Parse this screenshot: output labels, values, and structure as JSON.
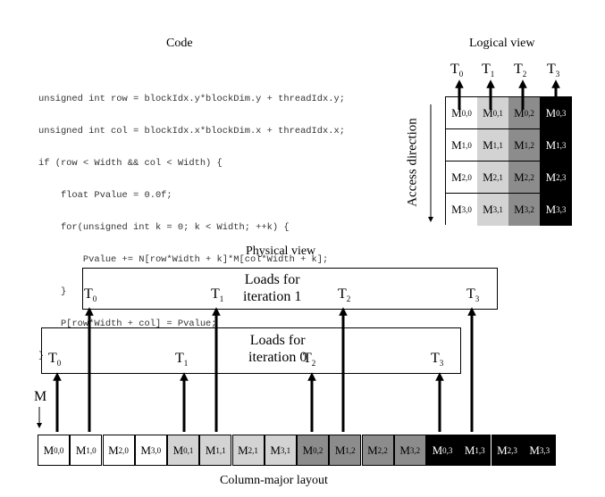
{
  "code_section": {
    "title": "Code",
    "lines": [
      "unsigned int row = blockIdx.y*blockDim.y + threadIdx.y;",
      "unsigned int col = blockIdx.x*blockDim.x + threadIdx.x;",
      "if (row < Width && col < Width) {",
      "    float Pvalue = 0.0f;",
      "    for(unsigned int k = 0; k < Width; ++k) {",
      "        Pvalue += N[row*Width + k]*M[col*Width + k];",
      "    }",
      "    P[row*Width + col] = Pvalue;",
      "}"
    ]
  },
  "logical_view": {
    "title": "Logical view",
    "threads": [
      "T0",
      "T1",
      "T2",
      "T3"
    ],
    "access_label": "Access direction",
    "column_colors": [
      "#ffffff",
      "#d3d3d3",
      "#8c8c8c",
      "#000000"
    ],
    "cells": [
      [
        "M0,0",
        "M0,1",
        "M0,2",
        "M0,3"
      ],
      [
        "M1,0",
        "M1,1",
        "M1,2",
        "M1,3"
      ],
      [
        "M2,0",
        "M2,1",
        "M2,2",
        "M2,3"
      ],
      [
        "M3,0",
        "M3,1",
        "M3,2",
        "M3,3"
      ]
    ]
  },
  "physical_view": {
    "title": "Physical view",
    "iteration1": {
      "label_line1": "Loads for",
      "label_line2": "iteration 1",
      "threads": [
        "T0",
        "T1",
        "T2",
        "T3"
      ]
    },
    "iteration0": {
      "label_line1": "Loads for",
      "label_line2": "iteration 0",
      "threads": [
        "T0",
        "T1",
        "T2",
        "T3"
      ]
    },
    "m_label": "M",
    "layout_label": "Column-major layout",
    "cells": [
      "M0,0",
      "M1,0",
      "M2,0",
      "M3,0",
      "M0,1",
      "M1,1",
      "M2,1",
      "M3,1",
      "M0,2",
      "M1,2",
      "M2,2",
      "M3,2",
      "M0,3",
      "M1,3",
      "M2,3",
      "M3,3"
    ]
  }
}
